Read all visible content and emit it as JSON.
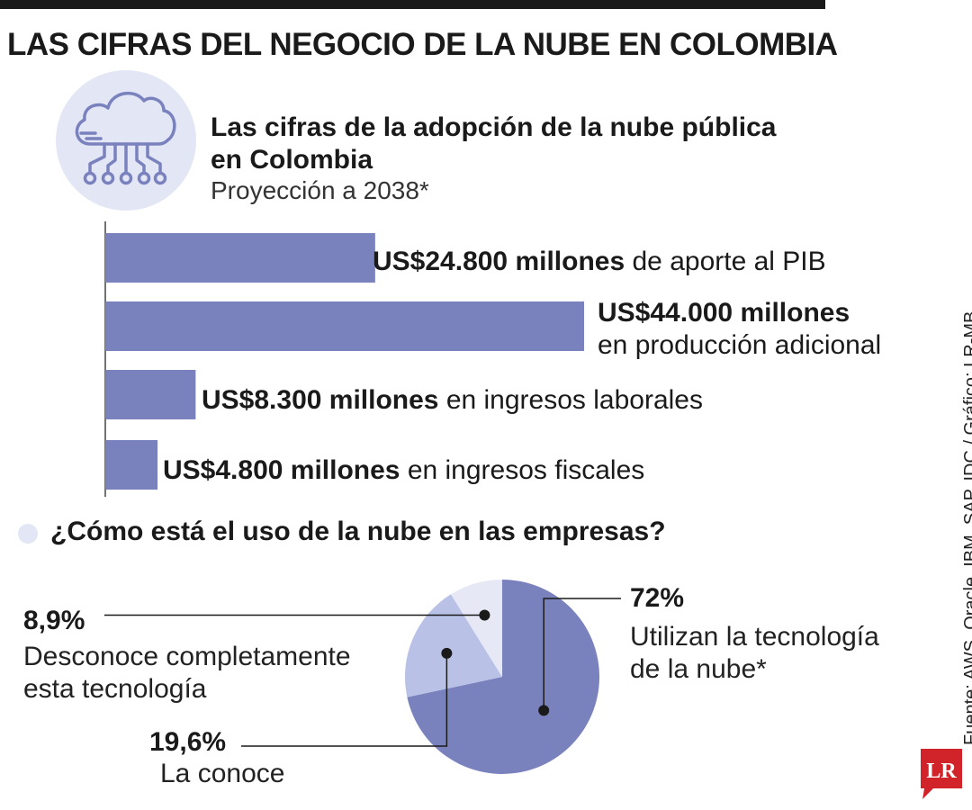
{
  "header": {
    "title": "LAS CIFRAS DEL NEGOCIO DE LA NUBE EN COLOMBIA"
  },
  "section1": {
    "title_line1": "Las cifras de la adopción de la nube pública",
    "title_line2": "en Colombia",
    "subtitle": "Proyección a 2038*"
  },
  "section2": {
    "title": "¿Cómo está el uso de la nube en las empresas?"
  },
  "source": "Fuente: AWS, Oracle, IBM, SAP, IDC / Gráfico: LR-MB",
  "logo_text": "LR",
  "colors": {
    "bar": "#7a82be",
    "pie_main": "#7a82be",
    "pie_mid": "#b9c2e6",
    "pie_light": "#e6e9f5",
    "accent_light": "#e3e7f5",
    "logo_red": "#d0242a"
  },
  "icons": [
    "cloud-circuit-icon"
  ],
  "chart_data": [
    {
      "type": "bar",
      "orientation": "horizontal",
      "title": "Las cifras de la adopción de la nube pública en Colombia",
      "subtitle": "Proyección a 2038*",
      "unit": "US$ millones",
      "xlim": [
        0,
        44000
      ],
      "categories": [
        "de aporte al PIB",
        "en producción adicional",
        "en ingresos laborales",
        "en ingresos fiscales"
      ],
      "values": [
        24800,
        44000,
        8300,
        4800
      ],
      "value_labels": [
        "US$24.800 millones",
        "US$44.000 millones",
        "US$8.300 millones",
        "US$4.800 millones"
      ]
    },
    {
      "type": "pie",
      "title": "¿Cómo está el uso de la nube en las empresas?",
      "slices": [
        {
          "label_value": "72%",
          "value": 72,
          "desc_line1": "Utilizan la tecnología",
          "desc_line2": "de la nube*"
        },
        {
          "label_value": "19,6%",
          "value": 19.6,
          "desc_line1": "La conoce"
        },
        {
          "label_value": "8,9%",
          "value": 8.9,
          "desc_line1": "Desconoce completamente",
          "desc_line2": "esta tecnología"
        }
      ]
    }
  ]
}
